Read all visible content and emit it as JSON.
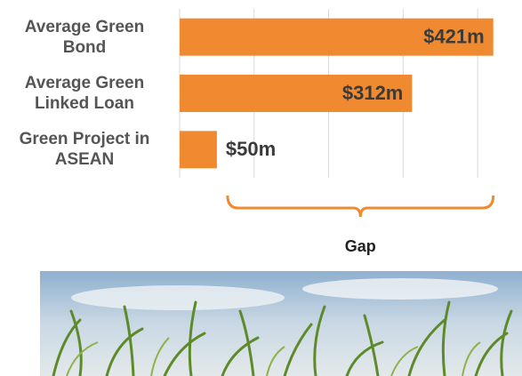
{
  "chart_data": {
    "type": "barh",
    "categories": [
      "Average Green\nBond",
      "Average Green\nLinked Loan",
      "Green Project in\nASEAN"
    ],
    "values": [
      421,
      312,
      50
    ],
    "value_labels": [
      "$421m",
      "$312m",
      "$50m"
    ],
    "color": "#f08a30",
    "xlim": [
      0,
      450
    ],
    "xticks": [
      0,
      100,
      200,
      300,
      400
    ],
    "grid": true,
    "annotation": "Gap"
  }
}
